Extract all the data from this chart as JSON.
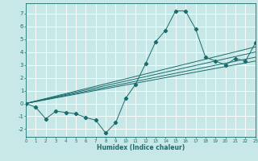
{
  "xlabel": "Humidex (Indice chaleur)",
  "background_color": "#c8e8e8",
  "grid_color": "#ffffff",
  "line_color": "#1a6b6b",
  "xlim": [
    0,
    23
  ],
  "ylim": [
    -2.6,
    7.8
  ],
  "x_ticks": [
    0,
    1,
    2,
    3,
    4,
    5,
    6,
    7,
    8,
    9,
    10,
    11,
    12,
    13,
    14,
    15,
    16,
    17,
    18,
    19,
    20,
    21,
    22,
    23
  ],
  "y_ticks": [
    -2,
    -1,
    0,
    1,
    2,
    3,
    4,
    5,
    6,
    7
  ],
  "data_series": {
    "x": [
      0,
      1,
      2,
      3,
      4,
      5,
      6,
      7,
      8,
      9,
      10,
      11,
      12,
      13,
      14,
      15,
      16,
      17,
      18,
      19,
      20,
      21,
      22,
      23
    ],
    "y": [
      0.0,
      -0.3,
      -1.2,
      -0.6,
      -0.7,
      -0.8,
      -1.1,
      -1.3,
      -2.3,
      -1.5,
      0.4,
      1.5,
      3.1,
      4.8,
      5.7,
      7.2,
      7.2,
      5.8,
      3.6,
      3.3,
      3.0,
      3.5,
      3.3,
      4.7
    ]
  },
  "trend_lines": [
    {
      "x0": 0,
      "y0": 0.0,
      "x1": 23,
      "y1": 3.3
    },
    {
      "x0": 0,
      "y0": 0.0,
      "x1": 23,
      "y1": 3.6
    },
    {
      "x0": 0,
      "y0": 0.0,
      "x1": 23,
      "y1": 4.0
    },
    {
      "x0": 0,
      "y0": 0.0,
      "x1": 23,
      "y1": 4.4
    }
  ]
}
